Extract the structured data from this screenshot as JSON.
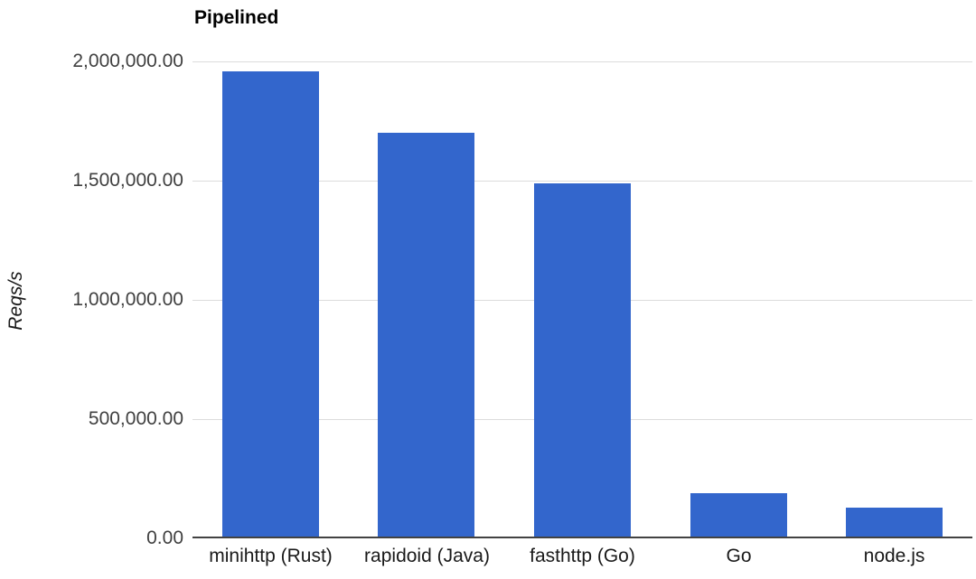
{
  "colors": {
    "bar": "#3366cc",
    "gridline": "#dcdcdc",
    "axis_line": "#424242",
    "tick_text": "#404040",
    "category_text": "#1a1a1a",
    "title_text": "#000000",
    "background": "#ffffff"
  },
  "chart_data": {
    "type": "bar",
    "title": "Pipelined",
    "xlabel": "",
    "ylabel": "Reqs/s",
    "categories": [
      "minihttp (Rust)",
      "rapidoid (Java)",
      "fasthttp (Go)",
      "Go",
      "node.js"
    ],
    "values": [
      1960000,
      1700000,
      1490000,
      190000,
      130000
    ],
    "ylim": [
      0,
      2000000
    ],
    "yticks": [
      0,
      500000,
      1000000,
      1500000,
      2000000
    ],
    "ytick_labels": [
      "0.00",
      "500,000.00",
      "1,000,000.00",
      "1,500,000.00",
      "2,000,000.00"
    ],
    "grid": true,
    "legend": "none"
  }
}
